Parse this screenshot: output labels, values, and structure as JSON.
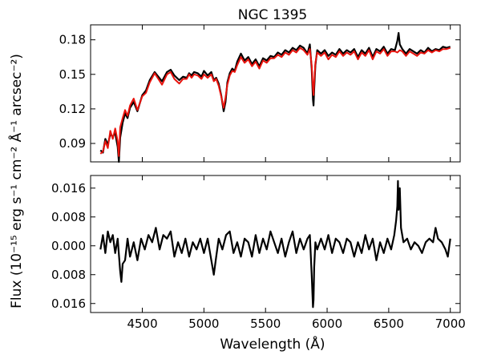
{
  "chart_data": [
    {
      "type": "line",
      "title": "NGC 1395",
      "xlabel": "",
      "ylabel": "",
      "xlim": [
        4080,
        7080
      ],
      "ylim": [
        0.074,
        0.193
      ],
      "yticks": [
        0.09,
        0.12,
        0.15,
        0.18
      ],
      "ytick_labels": [
        "0.09",
        "0.12",
        "0.15",
        "0.18"
      ],
      "grid": false,
      "series": [
        {
          "color": "#000000",
          "x": [
            4160,
            4180,
            4200,
            4220,
            4240,
            4260,
            4280,
            4300,
            4310,
            4320,
            4340,
            4360,
            4380,
            4400,
            4430,
            4460,
            4500,
            4530,
            4560,
            4600,
            4630,
            4660,
            4700,
            4730,
            4760,
            4800,
            4830,
            4860,
            4880,
            4900,
            4920,
            4950,
            4980,
            5000,
            5030,
            5060,
            5080,
            5100,
            5120,
            5140,
            5160,
            5175,
            5190,
            5210,
            5230,
            5250,
            5270,
            5300,
            5330,
            5360,
            5390,
            5420,
            5450,
            5480,
            5510,
            5540,
            5570,
            5600,
            5630,
            5660,
            5690,
            5720,
            5750,
            5780,
            5810,
            5840,
            5860,
            5875,
            5885,
            5890,
            5895,
            5905,
            5920,
            5950,
            5980,
            6010,
            6040,
            6070,
            6100,
            6130,
            6160,
            6190,
            6220,
            6250,
            6280,
            6310,
            6340,
            6370,
            6400,
            6430,
            6460,
            6490,
            6520,
            6550,
            6570,
            6580,
            6590,
            6610,
            6640,
            6670,
            6700,
            6730,
            6760,
            6790,
            6820,
            6850,
            6880,
            6910,
            6940,
            6970,
            7000
          ],
          "y": [
            0.084,
            0.082,
            0.094,
            0.089,
            0.098,
            0.096,
            0.099,
            0.087,
            0.074,
            0.095,
            0.108,
            0.116,
            0.112,
            0.121,
            0.126,
            0.118,
            0.132,
            0.136,
            0.145,
            0.152,
            0.148,
            0.144,
            0.152,
            0.154,
            0.149,
            0.145,
            0.148,
            0.147,
            0.151,
            0.149,
            0.152,
            0.151,
            0.148,
            0.153,
            0.149,
            0.152,
            0.145,
            0.147,
            0.142,
            0.132,
            0.118,
            0.126,
            0.143,
            0.151,
            0.155,
            0.153,
            0.161,
            0.168,
            0.162,
            0.165,
            0.159,
            0.163,
            0.157,
            0.164,
            0.162,
            0.166,
            0.165,
            0.169,
            0.167,
            0.171,
            0.169,
            0.173,
            0.171,
            0.175,
            0.173,
            0.168,
            0.176,
            0.155,
            0.128,
            0.123,
            0.137,
            0.158,
            0.171,
            0.168,
            0.171,
            0.166,
            0.169,
            0.167,
            0.172,
            0.168,
            0.171,
            0.169,
            0.172,
            0.165,
            0.171,
            0.168,
            0.173,
            0.165,
            0.172,
            0.17,
            0.174,
            0.168,
            0.172,
            0.171,
            0.179,
            0.186,
            0.176,
            0.172,
            0.168,
            0.172,
            0.17,
            0.168,
            0.171,
            0.169,
            0.173,
            0.17,
            0.172,
            0.171,
            0.174,
            0.173,
            0.174
          ]
        },
        {
          "color": "#e8120c",
          "x": [
            4160,
            4180,
            4200,
            4220,
            4240,
            4260,
            4280,
            4300,
            4310,
            4320,
            4340,
            4360,
            4380,
            4400,
            4430,
            4460,
            4500,
            4530,
            4560,
            4600,
            4630,
            4660,
            4700,
            4730,
            4760,
            4800,
            4830,
            4860,
            4880,
            4900,
            4920,
            4950,
            4980,
            5000,
            5030,
            5060,
            5080,
            5100,
            5120,
            5140,
            5160,
            5175,
            5190,
            5210,
            5230,
            5250,
            5270,
            5300,
            5330,
            5360,
            5390,
            5420,
            5450,
            5480,
            5510,
            5540,
            5570,
            5600,
            5630,
            5660,
            5690,
            5720,
            5750,
            5780,
            5810,
            5840,
            5860,
            5875,
            5885,
            5890,
            5895,
            5905,
            5920,
            5950,
            5980,
            6010,
            6040,
            6070,
            6100,
            6130,
            6160,
            6190,
            6220,
            6250,
            6280,
            6310,
            6340,
            6370,
            6400,
            6430,
            6460,
            6490,
            6520,
            6550,
            6570,
            6580,
            6590,
            6610,
            6640,
            6670,
            6700,
            6730,
            6760,
            6790,
            6820,
            6850,
            6880,
            6910,
            6940,
            6970,
            7000
          ],
          "y": [
            0.081,
            0.083,
            0.092,
            0.086,
            0.101,
            0.094,
            0.103,
            0.092,
            0.079,
            0.104,
            0.112,
            0.119,
            0.114,
            0.123,
            0.129,
            0.119,
            0.131,
            0.134,
            0.143,
            0.151,
            0.146,
            0.141,
            0.15,
            0.152,
            0.146,
            0.142,
            0.146,
            0.146,
            0.15,
            0.147,
            0.15,
            0.149,
            0.146,
            0.15,
            0.147,
            0.15,
            0.144,
            0.146,
            0.14,
            0.131,
            0.121,
            0.13,
            0.141,
            0.149,
            0.153,
            0.152,
            0.158,
            0.165,
            0.16,
            0.163,
            0.157,
            0.161,
            0.155,
            0.162,
            0.16,
            0.164,
            0.164,
            0.167,
            0.165,
            0.169,
            0.167,
            0.171,
            0.169,
            0.173,
            0.171,
            0.167,
            0.172,
            0.158,
            0.137,
            0.132,
            0.143,
            0.16,
            0.169,
            0.166,
            0.169,
            0.163,
            0.167,
            0.165,
            0.17,
            0.166,
            0.169,
            0.167,
            0.17,
            0.163,
            0.169,
            0.166,
            0.171,
            0.163,
            0.17,
            0.168,
            0.172,
            0.166,
            0.17,
            0.17,
            0.169,
            0.17,
            0.171,
            0.17,
            0.166,
            0.17,
            0.168,
            0.166,
            0.169,
            0.168,
            0.171,
            0.169,
            0.171,
            0.17,
            0.172,
            0.172,
            0.173
          ]
        }
      ]
    },
    {
      "type": "line",
      "title": "",
      "xlabel": "Wavelength (Å)",
      "ylabel": "Flux (10⁻¹⁵ erg s⁻¹ cm⁻² Å⁻¹ arcsec⁻²)",
      "xlim": [
        4080,
        7080
      ],
      "ylim": [
        -0.0185,
        0.0195
      ],
      "xticks": [
        4500,
        5000,
        5500,
        6000,
        6500,
        7000
      ],
      "xtick_labels": [
        "4500",
        "5000",
        "5500",
        "6000",
        "6500",
        "7000"
      ],
      "yticks": [
        -0.016,
        -0.008,
        0.0,
        0.008,
        0.016
      ],
      "ytick_labels": [
        "0.016",
        "0.008",
        "0.000",
        "0.008",
        "0.016"
      ],
      "grid": false,
      "series": [
        {
          "color": "#000000",
          "x": [
            4160,
            4180,
            4200,
            4220,
            4240,
            4260,
            4280,
            4300,
            4320,
            4330,
            4340,
            4360,
            4380,
            4400,
            4430,
            4460,
            4490,
            4520,
            4550,
            4580,
            4610,
            4640,
            4670,
            4700,
            4730,
            4760,
            4790,
            4820,
            4850,
            4880,
            4910,
            4940,
            4970,
            5000,
            5030,
            5060,
            5080,
            5100,
            5120,
            5150,
            5180,
            5210,
            5240,
            5270,
            5300,
            5330,
            5360,
            5390,
            5420,
            5450,
            5480,
            5510,
            5540,
            5570,
            5600,
            5630,
            5660,
            5690,
            5720,
            5750,
            5780,
            5810,
            5840,
            5860,
            5875,
            5885,
            5890,
            5895,
            5905,
            5920,
            5950,
            5980,
            6010,
            6040,
            6070,
            6100,
            6130,
            6160,
            6190,
            6220,
            6250,
            6280,
            6310,
            6340,
            6370,
            6400,
            6430,
            6460,
            6490,
            6520,
            6545,
            6560,
            6570,
            6575,
            6580,
            6590,
            6600,
            6620,
            6650,
            6680,
            6710,
            6740,
            6770,
            6800,
            6830,
            6860,
            6880,
            6900,
            6930,
            6960,
            6980,
            7000
          ],
          "y": [
            -0.001,
            0.003,
            -0.002,
            0.004,
            0.001,
            0.003,
            -0.002,
            0.002,
            -0.007,
            -0.01,
            -0.005,
            -0.004,
            0.002,
            -0.003,
            0.001,
            -0.004,
            0.002,
            -0.001,
            0.003,
            0.001,
            0.005,
            -0.001,
            0.003,
            0.002,
            0.004,
            -0.003,
            0.001,
            -0.002,
            0.002,
            -0.003,
            0.001,
            -0.001,
            0.002,
            -0.002,
            0.002,
            -0.004,
            -0.008,
            -0.003,
            0.002,
            -0.001,
            0.003,
            0.004,
            -0.002,
            0.001,
            -0.003,
            0.002,
            0.001,
            -0.003,
            0.003,
            -0.002,
            0.002,
            -0.001,
            0.004,
            0.001,
            -0.002,
            0.002,
            -0.003,
            0.001,
            0.004,
            -0.002,
            0.002,
            -0.001,
            0.002,
            0.003,
            -0.008,
            -0.017,
            -0.015,
            -0.006,
            0.001,
            -0.001,
            0.002,
            -0.001,
            0.003,
            -0.002,
            0.002,
            0.001,
            -0.002,
            0.002,
            0.001,
            -0.003,
            0.001,
            -0.002,
            0.003,
            -0.001,
            0.002,
            -0.004,
            0.001,
            -0.002,
            0.002,
            -0.001,
            0.003,
            0.007,
            0.011,
            0.018,
            0.01,
            0.016,
            0.005,
            0.001,
            0.002,
            -0.001,
            0.001,
            0.0,
            -0.002,
            0.001,
            0.002,
            0.001,
            0.005,
            0.002,
            0.001,
            -0.001,
            -0.003,
            0.002
          ]
        }
      ]
    }
  ]
}
